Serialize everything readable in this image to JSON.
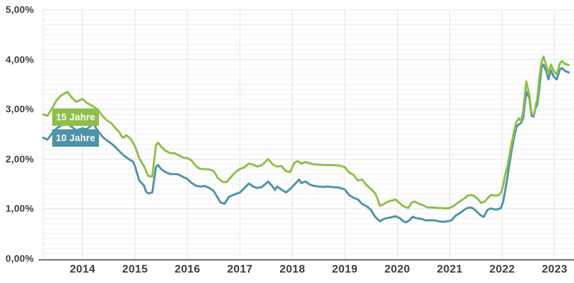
{
  "chart_data": {
    "type": "line",
    "title": "",
    "grid": {
      "minor_color": "#f0f0f0",
      "major_color": "#e2e2e2",
      "axis_color": "#474747",
      "background": "#ffffff"
    },
    "y_axis": {
      "min": 0,
      "max": 5,
      "minor_step": 0.1,
      "major_step": 1,
      "unit": "%",
      "tick_labels": [
        "0,00%",
        "1,00%",
        "2,00%",
        "3,00%",
        "4,00%",
        "5,00%"
      ]
    },
    "x_axis": {
      "range": [
        2013.25,
        2023.37
      ],
      "tick_years": [
        2014,
        2015,
        2016,
        2017,
        2018,
        2019,
        2020,
        2021,
        2022,
        2023
      ],
      "tick_labels": [
        "2014",
        "2015",
        "2016",
        "2017",
        "2018",
        "2019",
        "2020",
        "2021",
        "2022",
        "2023"
      ]
    },
    "legend": [
      {
        "label": "15 Jahre",
        "color": "#8cc04a"
      },
      {
        "label": "10 Jahre",
        "color": "#4e93a9"
      }
    ],
    "series": [
      {
        "name": "15 Jahre",
        "color": "#8cc04a",
        "points": [
          [
            2013.25,
            2.9
          ],
          [
            2013.33,
            2.87
          ],
          [
            2013.42,
            3.02
          ],
          [
            2013.5,
            3.17
          ],
          [
            2013.58,
            3.27
          ],
          [
            2013.71,
            3.35
          ],
          [
            2013.79,
            3.24
          ],
          [
            2013.88,
            3.15
          ],
          [
            2014.0,
            3.21
          ],
          [
            2014.08,
            3.13
          ],
          [
            2014.17,
            3.08
          ],
          [
            2014.29,
            2.99
          ],
          [
            2014.38,
            2.87
          ],
          [
            2014.46,
            2.78
          ],
          [
            2014.54,
            2.73
          ],
          [
            2014.63,
            2.62
          ],
          [
            2014.71,
            2.53
          ],
          [
            2014.75,
            2.45
          ],
          [
            2014.79,
            2.43
          ],
          [
            2014.83,
            2.48
          ],
          [
            2014.92,
            2.41
          ],
          [
            2015.0,
            2.26
          ],
          [
            2015.08,
            2.02
          ],
          [
            2015.17,
            1.86
          ],
          [
            2015.25,
            1.66
          ],
          [
            2015.33,
            1.65
          ],
          [
            2015.4,
            2.28
          ],
          [
            2015.44,
            2.33
          ],
          [
            2015.5,
            2.25
          ],
          [
            2015.58,
            2.17
          ],
          [
            2015.67,
            2.12
          ],
          [
            2015.75,
            2.12
          ],
          [
            2015.83,
            2.08
          ],
          [
            2015.92,
            2.03
          ],
          [
            2016.0,
            2.02
          ],
          [
            2016.08,
            1.97
          ],
          [
            2016.17,
            1.85
          ],
          [
            2016.25,
            1.8
          ],
          [
            2016.33,
            1.8
          ],
          [
            2016.42,
            1.79
          ],
          [
            2016.5,
            1.76
          ],
          [
            2016.58,
            1.62
          ],
          [
            2016.67,
            1.54
          ],
          [
            2016.75,
            1.54
          ],
          [
            2016.83,
            1.64
          ],
          [
            2016.92,
            1.74
          ],
          [
            2017.0,
            1.8
          ],
          [
            2017.08,
            1.83
          ],
          [
            2017.17,
            1.91
          ],
          [
            2017.25,
            1.89
          ],
          [
            2017.33,
            1.85
          ],
          [
            2017.42,
            1.88
          ],
          [
            2017.54,
            2.0
          ],
          [
            2017.63,
            1.89
          ],
          [
            2017.71,
            1.85
          ],
          [
            2017.79,
            1.86
          ],
          [
            2017.88,
            1.76
          ],
          [
            2017.96,
            1.74
          ],
          [
            2018.04,
            1.93
          ],
          [
            2018.1,
            1.96
          ],
          [
            2018.17,
            1.91
          ],
          [
            2018.25,
            1.94
          ],
          [
            2018.38,
            1.9
          ],
          [
            2018.5,
            1.89
          ],
          [
            2018.63,
            1.88
          ],
          [
            2018.75,
            1.88
          ],
          [
            2018.88,
            1.87
          ],
          [
            2019.0,
            1.84
          ],
          [
            2019.08,
            1.73
          ],
          [
            2019.17,
            1.68
          ],
          [
            2019.25,
            1.57
          ],
          [
            2019.33,
            1.59
          ],
          [
            2019.42,
            1.47
          ],
          [
            2019.5,
            1.4
          ],
          [
            2019.58,
            1.31
          ],
          [
            2019.63,
            1.19
          ],
          [
            2019.67,
            1.06
          ],
          [
            2019.75,
            1.1
          ],
          [
            2019.83,
            1.15
          ],
          [
            2019.92,
            1.17
          ],
          [
            2019.97,
            1.19
          ],
          [
            2020.04,
            1.12
          ],
          [
            2020.12,
            1.05
          ],
          [
            2020.21,
            1.02
          ],
          [
            2020.27,
            1.12
          ],
          [
            2020.33,
            1.15
          ],
          [
            2020.42,
            1.1
          ],
          [
            2020.5,
            1.07
          ],
          [
            2020.58,
            1.03
          ],
          [
            2020.67,
            1.03
          ],
          [
            2020.75,
            1.02
          ],
          [
            2020.83,
            1.02
          ],
          [
            2020.92,
            1.01
          ],
          [
            2021.0,
            1.02
          ],
          [
            2021.08,
            1.06
          ],
          [
            2021.15,
            1.12
          ],
          [
            2021.21,
            1.16
          ],
          [
            2021.29,
            1.22
          ],
          [
            2021.35,
            1.27
          ],
          [
            2021.42,
            1.28
          ],
          [
            2021.48,
            1.25
          ],
          [
            2021.54,
            1.19
          ],
          [
            2021.6,
            1.12
          ],
          [
            2021.67,
            1.15
          ],
          [
            2021.73,
            1.22
          ],
          [
            2021.79,
            1.28
          ],
          [
            2021.85,
            1.27
          ],
          [
            2021.92,
            1.27
          ],
          [
            2021.98,
            1.32
          ],
          [
            2022.02,
            1.47
          ],
          [
            2022.06,
            1.7
          ],
          [
            2022.1,
            1.85
          ],
          [
            2022.14,
            2.08
          ],
          [
            2022.18,
            2.31
          ],
          [
            2022.22,
            2.52
          ],
          [
            2022.27,
            2.75
          ],
          [
            2022.32,
            2.82
          ],
          [
            2022.36,
            2.76
          ],
          [
            2022.4,
            2.96
          ],
          [
            2022.46,
            3.56
          ],
          [
            2022.52,
            3.28
          ],
          [
            2022.56,
            2.92
          ],
          [
            2022.6,
            2.88
          ],
          [
            2022.63,
            3.02
          ],
          [
            2022.67,
            3.22
          ],
          [
            2022.71,
            3.64
          ],
          [
            2022.75,
            3.94
          ],
          [
            2022.79,
            4.06
          ],
          [
            2022.85,
            3.86
          ],
          [
            2022.88,
            3.7
          ],
          [
            2022.93,
            3.9
          ],
          [
            2022.98,
            3.78
          ],
          [
            2023.04,
            3.7
          ],
          [
            2023.1,
            3.92
          ],
          [
            2023.14,
            3.97
          ],
          [
            2023.2,
            3.91
          ],
          [
            2023.27,
            3.89
          ]
        ]
      },
      {
        "name": "10 Jahre",
        "color": "#4e93a9",
        "points": [
          [
            2013.25,
            2.43
          ],
          [
            2013.33,
            2.39
          ],
          [
            2013.42,
            2.52
          ],
          [
            2013.5,
            2.61
          ],
          [
            2013.58,
            2.67
          ],
          [
            2013.71,
            2.72
          ],
          [
            2013.79,
            2.65
          ],
          [
            2013.88,
            2.58
          ],
          [
            2014.0,
            2.62
          ],
          [
            2014.08,
            2.6
          ],
          [
            2014.17,
            2.68
          ],
          [
            2014.21,
            2.71
          ],
          [
            2014.29,
            2.57
          ],
          [
            2014.38,
            2.45
          ],
          [
            2014.46,
            2.38
          ],
          [
            2014.54,
            2.32
          ],
          [
            2014.63,
            2.24
          ],
          [
            2014.71,
            2.15
          ],
          [
            2014.79,
            2.07
          ],
          [
            2014.88,
            2.0
          ],
          [
            2014.96,
            1.95
          ],
          [
            2015.0,
            1.86
          ],
          [
            2015.08,
            1.57
          ],
          [
            2015.17,
            1.47
          ],
          [
            2015.21,
            1.35
          ],
          [
            2015.25,
            1.31
          ],
          [
            2015.33,
            1.33
          ],
          [
            2015.4,
            1.84
          ],
          [
            2015.44,
            1.88
          ],
          [
            2015.5,
            1.8
          ],
          [
            2015.58,
            1.74
          ],
          [
            2015.67,
            1.7
          ],
          [
            2015.75,
            1.7
          ],
          [
            2015.83,
            1.69
          ],
          [
            2015.92,
            1.64
          ],
          [
            2016.0,
            1.6
          ],
          [
            2016.08,
            1.52
          ],
          [
            2016.17,
            1.46
          ],
          [
            2016.25,
            1.45
          ],
          [
            2016.33,
            1.46
          ],
          [
            2016.42,
            1.42
          ],
          [
            2016.5,
            1.36
          ],
          [
            2016.58,
            1.22
          ],
          [
            2016.63,
            1.13
          ],
          [
            2016.71,
            1.1
          ],
          [
            2016.79,
            1.24
          ],
          [
            2016.92,
            1.3
          ],
          [
            2017.0,
            1.33
          ],
          [
            2017.08,
            1.41
          ],
          [
            2017.17,
            1.51
          ],
          [
            2017.25,
            1.45
          ],
          [
            2017.33,
            1.42
          ],
          [
            2017.42,
            1.44
          ],
          [
            2017.54,
            1.55
          ],
          [
            2017.63,
            1.44
          ],
          [
            2017.67,
            1.38
          ],
          [
            2017.71,
            1.45
          ],
          [
            2017.79,
            1.39
          ],
          [
            2017.88,
            1.33
          ],
          [
            2017.96,
            1.4
          ],
          [
            2018.04,
            1.49
          ],
          [
            2018.13,
            1.59
          ],
          [
            2018.17,
            1.52
          ],
          [
            2018.25,
            1.55
          ],
          [
            2018.33,
            1.49
          ],
          [
            2018.42,
            1.46
          ],
          [
            2018.5,
            1.45
          ],
          [
            2018.58,
            1.44
          ],
          [
            2018.67,
            1.45
          ],
          [
            2018.75,
            1.44
          ],
          [
            2018.88,
            1.43
          ],
          [
            2019.0,
            1.39
          ],
          [
            2019.08,
            1.28
          ],
          [
            2019.17,
            1.22
          ],
          [
            2019.25,
            1.19
          ],
          [
            2019.33,
            1.1
          ],
          [
            2019.42,
            1.05
          ],
          [
            2019.5,
            0.98
          ],
          [
            2019.58,
            0.84
          ],
          [
            2019.67,
            0.75
          ],
          [
            2019.75,
            0.8
          ],
          [
            2019.83,
            0.82
          ],
          [
            2019.92,
            0.84
          ],
          [
            2019.97,
            0.85
          ],
          [
            2020.04,
            0.82
          ],
          [
            2020.12,
            0.75
          ],
          [
            2020.17,
            0.73
          ],
          [
            2020.23,
            0.77
          ],
          [
            2020.29,
            0.84
          ],
          [
            2020.38,
            0.81
          ],
          [
            2020.46,
            0.8
          ],
          [
            2020.54,
            0.77
          ],
          [
            2020.63,
            0.77
          ],
          [
            2020.71,
            0.77
          ],
          [
            2020.79,
            0.75
          ],
          [
            2020.88,
            0.74
          ],
          [
            2020.96,
            0.75
          ],
          [
            2021.03,
            0.77
          ],
          [
            2021.12,
            0.87
          ],
          [
            2021.19,
            0.91
          ],
          [
            2021.25,
            0.96
          ],
          [
            2021.32,
            1.01
          ],
          [
            2021.39,
            1.03
          ],
          [
            2021.45,
            1.01
          ],
          [
            2021.52,
            0.94
          ],
          [
            2021.59,
            0.87
          ],
          [
            2021.65,
            0.84
          ],
          [
            2021.72,
            0.98
          ],
          [
            2021.78,
            1.01
          ],
          [
            2021.85,
            0.99
          ],
          [
            2021.92,
            0.99
          ],
          [
            2021.98,
            1.02
          ],
          [
            2022.02,
            1.15
          ],
          [
            2022.06,
            1.38
          ],
          [
            2022.1,
            1.63
          ],
          [
            2022.14,
            1.91
          ],
          [
            2022.18,
            2.17
          ],
          [
            2022.22,
            2.4
          ],
          [
            2022.27,
            2.64
          ],
          [
            2022.32,
            2.7
          ],
          [
            2022.36,
            2.72
          ],
          [
            2022.4,
            2.82
          ],
          [
            2022.46,
            3.35
          ],
          [
            2022.52,
            3.22
          ],
          [
            2022.56,
            2.87
          ],
          [
            2022.6,
            2.85
          ],
          [
            2022.63,
            3.0
          ],
          [
            2022.67,
            3.1
          ],
          [
            2022.71,
            3.42
          ],
          [
            2022.75,
            3.83
          ],
          [
            2022.79,
            3.9
          ],
          [
            2022.85,
            3.74
          ],
          [
            2022.88,
            3.6
          ],
          [
            2022.93,
            3.78
          ],
          [
            2022.98,
            3.66
          ],
          [
            2023.04,
            3.6
          ],
          [
            2023.1,
            3.8
          ],
          [
            2023.14,
            3.83
          ],
          [
            2023.2,
            3.77
          ],
          [
            2023.27,
            3.74
          ]
        ]
      }
    ]
  }
}
